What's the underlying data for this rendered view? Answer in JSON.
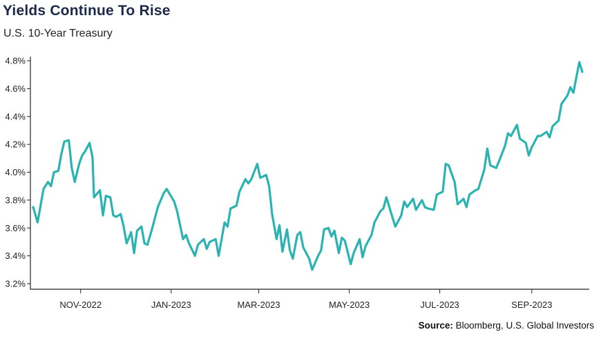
{
  "header": {
    "title": "Yields Continue To Rise",
    "subtitle": "U.S. 10-Year Treasury"
  },
  "footer": {
    "source_label": "Source:",
    "source_text": "Bloomberg, U.S. Global Investors"
  },
  "colors": {
    "line": "#2ab3b1",
    "axis": "#222222",
    "title": "#1b2a4a"
  },
  "chart_data": {
    "type": "line",
    "title": "Yields Continue To Rise",
    "subtitle": "U.S. 10-Year Treasury",
    "xlabel": "",
    "ylabel": "",
    "ylim": [
      3.2,
      4.8
    ],
    "y_ticks": [
      "3.2%",
      "3.4%",
      "3.6%",
      "3.8%",
      "4.0%",
      "4.2%",
      "4.4%",
      "4.6%",
      "4.8%"
    ],
    "x_ticks": [
      "NOV-2022",
      "JAN-2023",
      "MAR-2023",
      "MAY-2023",
      "JUL-2023",
      "SEP-2023"
    ],
    "x_tick_dates": [
      "2022-11-01",
      "2023-01-01",
      "2023-03-01",
      "2023-05-01",
      "2023-07-01",
      "2023-09-01"
    ],
    "xlim": [
      "2022-09-30",
      "2023-10-06"
    ],
    "grid": false,
    "series": [
      {
        "values": [
          [
            "2022-09-30",
            3.75
          ],
          [
            "2022-10-03",
            3.64
          ],
          [
            "2022-10-05",
            3.76
          ],
          [
            "2022-10-07",
            3.88
          ],
          [
            "2022-10-10",
            3.93
          ],
          [
            "2022-10-12",
            3.9
          ],
          [
            "2022-10-14",
            4.0
          ],
          [
            "2022-10-17",
            4.01
          ],
          [
            "2022-10-19",
            4.13
          ],
          [
            "2022-10-21",
            4.22
          ],
          [
            "2022-10-24",
            4.23
          ],
          [
            "2022-10-26",
            4.03
          ],
          [
            "2022-10-28",
            3.93
          ],
          [
            "2022-10-31",
            4.06
          ],
          [
            "2022-11-02",
            4.12
          ],
          [
            "2022-11-04",
            4.15
          ],
          [
            "2022-11-07",
            4.21
          ],
          [
            "2022-11-09",
            4.11
          ],
          [
            "2022-11-10",
            3.82
          ],
          [
            "2022-11-14",
            3.87
          ],
          [
            "2022-11-16",
            3.69
          ],
          [
            "2022-11-18",
            3.83
          ],
          [
            "2022-11-21",
            3.82
          ],
          [
            "2022-11-23",
            3.69
          ],
          [
            "2022-11-25",
            3.68
          ],
          [
            "2022-11-28",
            3.7
          ],
          [
            "2022-11-30",
            3.61
          ],
          [
            "2022-12-02",
            3.49
          ],
          [
            "2022-12-05",
            3.57
          ],
          [
            "2022-12-07",
            3.42
          ],
          [
            "2022-12-09",
            3.58
          ],
          [
            "2022-12-12",
            3.61
          ],
          [
            "2022-12-14",
            3.49
          ],
          [
            "2022-12-16",
            3.48
          ],
          [
            "2022-12-19",
            3.59
          ],
          [
            "2022-12-21",
            3.67
          ],
          [
            "2022-12-23",
            3.75
          ],
          [
            "2022-12-27",
            3.85
          ],
          [
            "2022-12-29",
            3.88
          ],
          [
            "2023-01-03",
            3.79
          ],
          [
            "2023-01-05",
            3.72
          ],
          [
            "2023-01-09",
            3.52
          ],
          [
            "2023-01-11",
            3.55
          ],
          [
            "2023-01-13",
            3.49
          ],
          [
            "2023-01-17",
            3.4
          ],
          [
            "2023-01-19",
            3.48
          ],
          [
            "2023-01-23",
            3.52
          ],
          [
            "2023-01-25",
            3.45
          ],
          [
            "2023-01-27",
            3.5
          ],
          [
            "2023-01-31",
            3.52
          ],
          [
            "2023-02-02",
            3.4
          ],
          [
            "2023-02-06",
            3.64
          ],
          [
            "2023-02-08",
            3.61
          ],
          [
            "2023-02-10",
            3.74
          ],
          [
            "2023-02-14",
            3.76
          ],
          [
            "2023-02-16",
            3.86
          ],
          [
            "2023-02-20",
            3.95
          ],
          [
            "2023-02-22",
            3.92
          ],
          [
            "2023-02-24",
            3.95
          ],
          [
            "2023-02-28",
            4.06
          ],
          [
            "2023-03-02",
            3.96
          ],
          [
            "2023-03-06",
            3.98
          ],
          [
            "2023-03-08",
            3.9
          ],
          [
            "2023-03-10",
            3.7
          ],
          [
            "2023-03-13",
            3.52
          ],
          [
            "2023-03-15",
            3.62
          ],
          [
            "2023-03-17",
            3.43
          ],
          [
            "2023-03-20",
            3.59
          ],
          [
            "2023-03-22",
            3.44
          ],
          [
            "2023-03-24",
            3.38
          ],
          [
            "2023-03-27",
            3.55
          ],
          [
            "2023-03-29",
            3.57
          ],
          [
            "2023-03-31",
            3.46
          ],
          [
            "2023-04-04",
            3.38
          ],
          [
            "2023-04-06",
            3.3
          ],
          [
            "2023-04-10",
            3.4
          ],
          [
            "2023-04-12",
            3.44
          ],
          [
            "2023-04-14",
            3.59
          ],
          [
            "2023-04-17",
            3.6
          ],
          [
            "2023-04-19",
            3.54
          ],
          [
            "2023-04-21",
            3.58
          ],
          [
            "2023-04-24",
            3.42
          ],
          [
            "2023-04-26",
            3.53
          ],
          [
            "2023-04-28",
            3.51
          ],
          [
            "2023-05-02",
            3.34
          ],
          [
            "2023-05-04",
            3.42
          ],
          [
            "2023-05-08",
            3.52
          ],
          [
            "2023-05-10",
            3.39
          ],
          [
            "2023-05-12",
            3.47
          ],
          [
            "2023-05-16",
            3.55
          ],
          [
            "2023-05-18",
            3.64
          ],
          [
            "2023-05-22",
            3.72
          ],
          [
            "2023-05-24",
            3.74
          ],
          [
            "2023-05-26",
            3.82
          ],
          [
            "2023-05-30",
            3.68
          ],
          [
            "2023-06-01",
            3.61
          ],
          [
            "2023-06-05",
            3.69
          ],
          [
            "2023-06-07",
            3.79
          ],
          [
            "2023-06-09",
            3.75
          ],
          [
            "2023-06-13",
            3.81
          ],
          [
            "2023-06-15",
            3.73
          ],
          [
            "2023-06-19",
            3.8
          ],
          [
            "2023-06-21",
            3.75
          ],
          [
            "2023-06-23",
            3.74
          ],
          [
            "2023-06-27",
            3.73
          ],
          [
            "2023-06-29",
            3.84
          ],
          [
            "2023-07-03",
            3.86
          ],
          [
            "2023-07-05",
            4.06
          ],
          [
            "2023-07-07",
            4.05
          ],
          [
            "2023-07-11",
            3.93
          ],
          [
            "2023-07-13",
            3.77
          ],
          [
            "2023-07-17",
            3.81
          ],
          [
            "2023-07-19",
            3.75
          ],
          [
            "2023-07-21",
            3.84
          ],
          [
            "2023-07-25",
            3.87
          ],
          [
            "2023-07-27",
            3.88
          ],
          [
            "2023-07-31",
            4.02
          ],
          [
            "2023-08-02",
            4.17
          ],
          [
            "2023-08-04",
            4.05
          ],
          [
            "2023-08-08",
            4.03
          ],
          [
            "2023-08-10",
            4.08
          ],
          [
            "2023-08-14",
            4.19
          ],
          [
            "2023-08-16",
            4.28
          ],
          [
            "2023-08-18",
            4.26
          ],
          [
            "2023-08-22",
            4.34
          ],
          [
            "2023-08-24",
            4.24
          ],
          [
            "2023-08-28",
            4.21
          ],
          [
            "2023-08-30",
            4.12
          ],
          [
            "2023-09-01",
            4.18
          ],
          [
            "2023-09-05",
            4.26
          ],
          [
            "2023-09-07",
            4.26
          ],
          [
            "2023-09-11",
            4.29
          ],
          [
            "2023-09-13",
            4.25
          ],
          [
            "2023-09-15",
            4.33
          ],
          [
            "2023-09-19",
            4.37
          ],
          [
            "2023-09-21",
            4.49
          ],
          [
            "2023-09-25",
            4.55
          ],
          [
            "2023-09-27",
            4.61
          ],
          [
            "2023-09-29",
            4.57
          ],
          [
            "2023-10-03",
            4.79
          ],
          [
            "2023-10-05",
            4.72
          ]
        ]
      }
    ]
  }
}
